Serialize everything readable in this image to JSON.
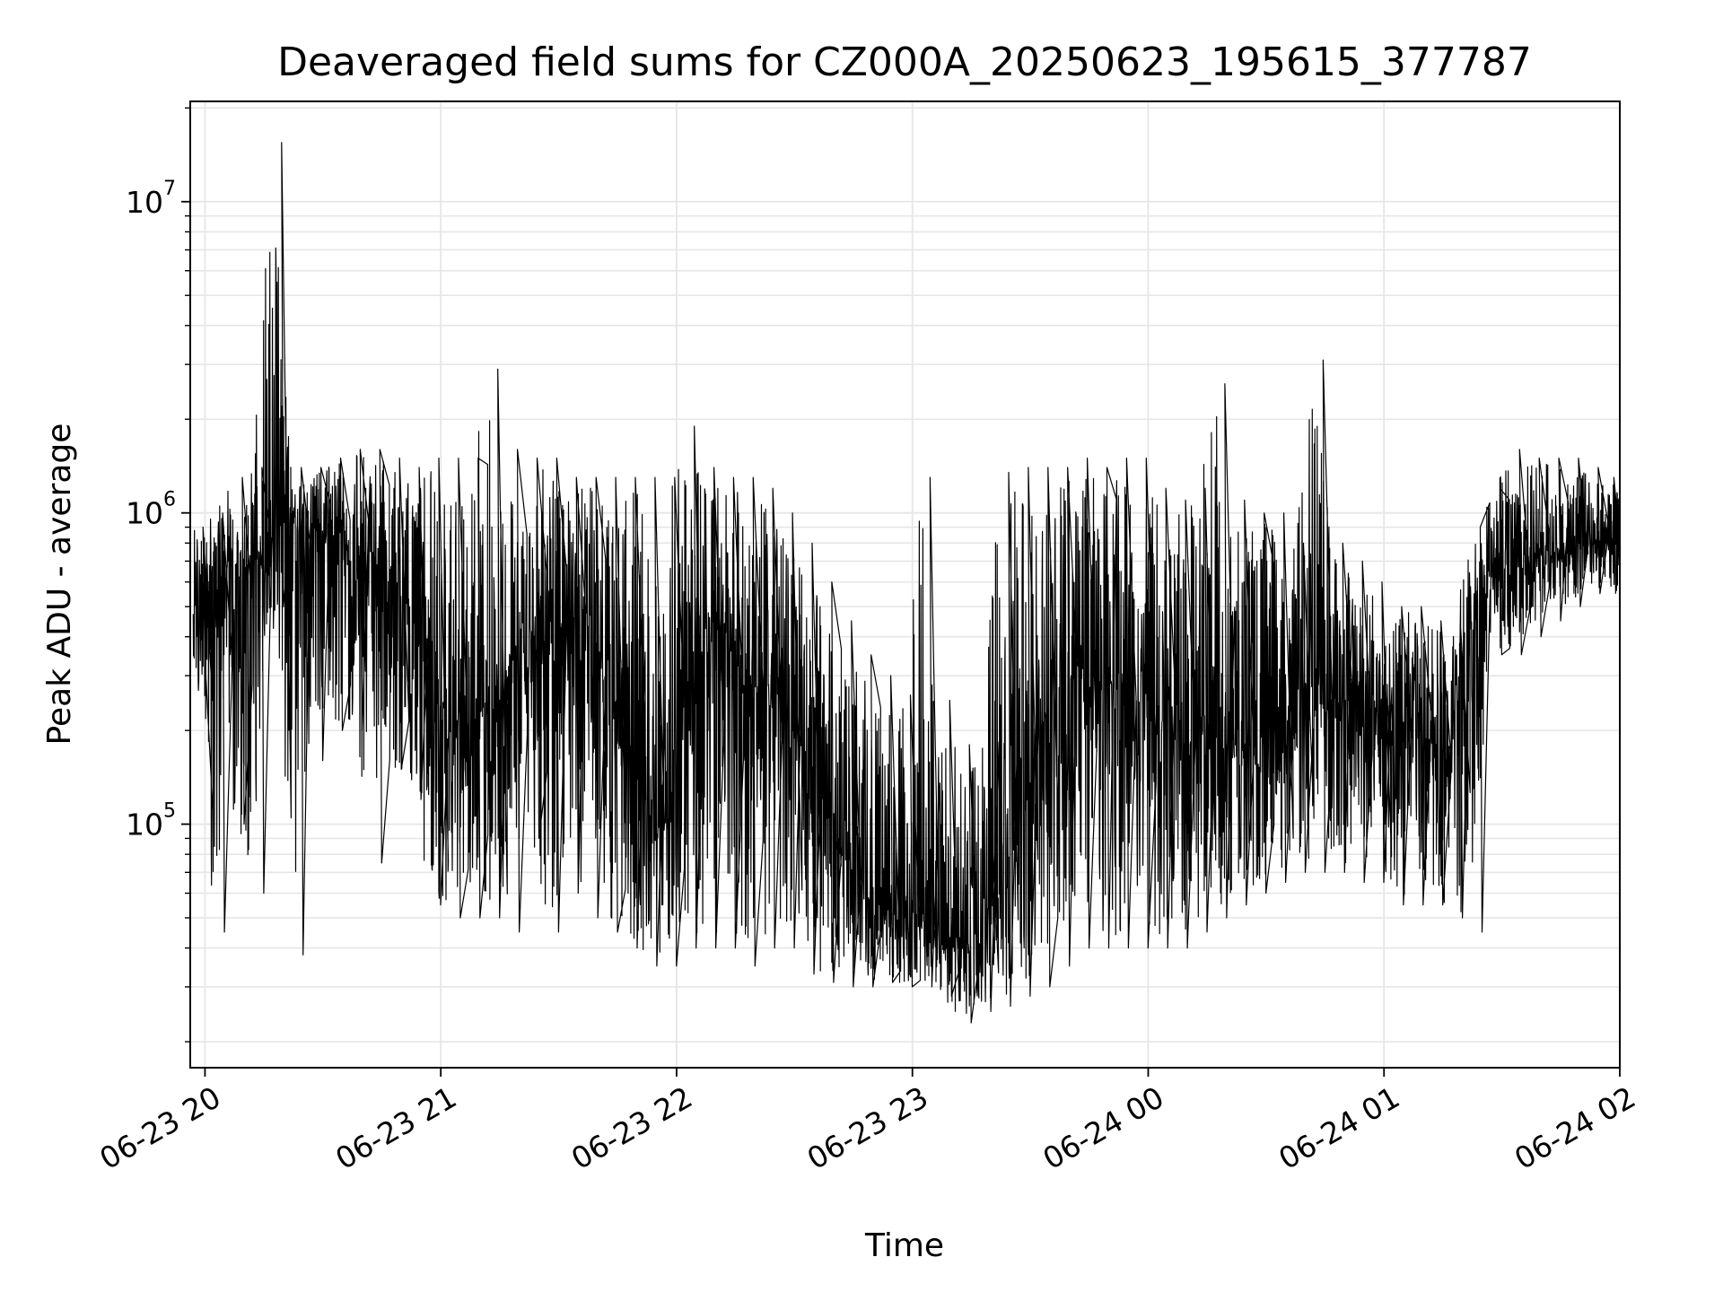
{
  "chart_data": {
    "type": "line",
    "title": "Deaveraged field sums for CZ000A_20250623_195615_377787",
    "xlabel": "Time",
    "ylabel": "Peak ADU - average",
    "y_scale": "log",
    "ylim": [
      16500,
      21000000
    ],
    "xlim": [
      "2025-06-23 19:56:15",
      "2025-06-24 02:00:00"
    ],
    "grid": true,
    "line_color": "#000000",
    "grid_color": "#e6e6e6",
    "x_ticks": [
      "06-23 20",
      "06-23 21",
      "06-23 22",
      "06-23 23",
      "06-24 00",
      "06-24 01",
      "06-24 02"
    ],
    "x_tick_times": [
      "2025-06-23 20:00",
      "2025-06-23 21:00",
      "2025-06-23 22:00",
      "2025-06-23 23:00",
      "2025-06-24 00:00",
      "2025-06-24 01:00",
      "2025-06-24 02:00"
    ],
    "y_ticks": [
      {
        "value": 100000,
        "base": "10",
        "exp": "5"
      },
      {
        "value": 1000000,
        "base": "10",
        "exp": "6"
      },
      {
        "value": 10000000,
        "base": "10",
        "exp": "7"
      }
    ],
    "series": [
      {
        "x": [
          "2025-06-23 19:57",
          "2025-06-23 20:02",
          "2025-06-23 20:07",
          "2025-06-23 20:12",
          "2025-06-23 20:17",
          "2025-06-23 20:22",
          "2025-06-23 20:27",
          "2025-06-23 20:32",
          "2025-06-23 20:37",
          "2025-06-23 20:42",
          "2025-06-23 20:47",
          "2025-06-23 20:52",
          "2025-06-23 20:57",
          "2025-06-23 21:02",
          "2025-06-23 21:07",
          "2025-06-23 21:12",
          "2025-06-23 21:17",
          "2025-06-23 21:22",
          "2025-06-23 21:27",
          "2025-06-23 21:32",
          "2025-06-23 21:37",
          "2025-06-23 21:42",
          "2025-06-23 21:47",
          "2025-06-23 21:52",
          "2025-06-23 21:57",
          "2025-06-23 22:02",
          "2025-06-23 22:07",
          "2025-06-23 22:12",
          "2025-06-23 22:17",
          "2025-06-23 22:22",
          "2025-06-23 22:27",
          "2025-06-23 22:32",
          "2025-06-23 22:37",
          "2025-06-23 22:42",
          "2025-06-23 22:47",
          "2025-06-23 22:52",
          "2025-06-23 22:57",
          "2025-06-23 23:02",
          "2025-06-23 23:07",
          "2025-06-23 23:12",
          "2025-06-23 23:17",
          "2025-06-23 23:22",
          "2025-06-23 23:27",
          "2025-06-23 23:32",
          "2025-06-23 23:37",
          "2025-06-23 23:42",
          "2025-06-23 23:47",
          "2025-06-23 23:52",
          "2025-06-23 23:57",
          "2025-06-24 00:02",
          "2025-06-24 00:07",
          "2025-06-24 00:12",
          "2025-06-24 00:17",
          "2025-06-24 00:22",
          "2025-06-24 00:27",
          "2025-06-24 00:32",
          "2025-06-24 00:37",
          "2025-06-24 00:42",
          "2025-06-24 00:47",
          "2025-06-24 00:52",
          "2025-06-24 00:57",
          "2025-06-24 01:02",
          "2025-06-24 01:07",
          "2025-06-24 01:12",
          "2025-06-24 01:17",
          "2025-06-24 01:22",
          "2025-06-24 01:27",
          "2025-06-24 01:32",
          "2025-06-24 01:37",
          "2025-06-24 01:42",
          "2025-06-24 01:47",
          "2025-06-24 01:52",
          "2025-06-24 01:57",
          "2025-06-24 02:00"
        ],
        "center": [
          500000,
          600000,
          700000,
          650000,
          800000,
          900000,
          900000,
          800000,
          750000,
          700000,
          600000,
          500000,
          300000,
          200000,
          200000,
          250000,
          300000,
          350000,
          400000,
          400000,
          350000,
          300000,
          200000,
          120000,
          90000,
          250000,
          350000,
          400000,
          300000,
          250000,
          220000,
          180000,
          120000,
          80000,
          60000,
          55000,
          50000,
          50000,
          45000,
          42000,
          40000,
          60000,
          90000,
          200000,
          280000,
          300000,
          300000,
          280000,
          250000,
          220000,
          200000,
          190000,
          180000,
          170000,
          180000,
          200000,
          220000,
          240000,
          250000,
          240000,
          230000,
          220000,
          200000,
          180000,
          170000,
          400000,
          600000,
          650000,
          700000,
          750000,
          750000,
          800000,
          800000,
          800000
        ],
        "high": [
          900000,
          1000000,
          1300000,
          1400000,
          15500000,
          1400000,
          1400000,
          1500000,
          1600000,
          1600000,
          1500000,
          1400000,
          1500000,
          1500000,
          1500000,
          2900000,
          1600000,
          1500000,
          1500000,
          1300000,
          1300000,
          1300000,
          1300000,
          1300000,
          1300000,
          1900000,
          1400000,
          1300000,
          1300000,
          1200000,
          1000000,
          800000,
          600000,
          450000,
          350000,
          300000,
          260000,
          1300000,
          250000,
          180000,
          160000,
          1350000,
          1400000,
          1400000,
          1400000,
          1500000,
          1400000,
          1500000,
          1500000,
          1200000,
          1100000,
          1200000,
          2600000,
          1100000,
          1000000,
          1000000,
          800000,
          3100000,
          800000,
          700000,
          600000,
          500000,
          500000,
          450000,
          430000,
          900000,
          1200000,
          1600000,
          1500000,
          1500000,
          1500000,
          1400000,
          1300000,
          1300000
        ],
        "low": [
          350000,
          45000,
          100000,
          60000,
          500000,
          38000,
          160000,
          200000,
          200000,
          75000,
          150000,
          120000,
          55000,
          50000,
          50000,
          50000,
          45000,
          90000,
          45000,
          60000,
          50000,
          45000,
          40000,
          35000,
          35000,
          40000,
          40000,
          40000,
          35000,
          40000,
          40000,
          33000,
          31000,
          30000,
          30000,
          31000,
          30000,
          30000,
          28000,
          23000,
          25000,
          26000,
          28000,
          30000,
          35000,
          40000,
          40000,
          40000,
          40000,
          40000,
          40000,
          45000,
          50000,
          55000,
          60000,
          65000,
          70000,
          70000,
          70000,
          65000,
          65000,
          55000,
          55000,
          55000,
          50000,
          45000,
          350000,
          350000,
          400000,
          450000,
          500000,
          550000,
          550000,
          550000
        ]
      }
    ]
  }
}
